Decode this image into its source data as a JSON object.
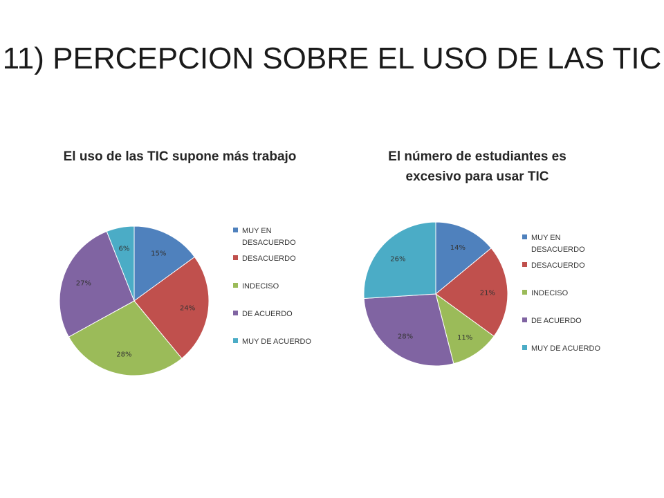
{
  "slide": {
    "title": "11) PERCEPCION SOBRE EL USO DE LAS TIC"
  },
  "colors": {
    "blue": "#4F81BD",
    "red": "#C0504D",
    "green": "#9BBB59",
    "purple": "#8064A2",
    "teal": "#4BACC6"
  },
  "chart_data": [
    {
      "type": "pie",
      "title": "El uso de las TIC supone más trabajo",
      "categories": [
        "MUY EN DESACUERDO",
        "DESACUERDO",
        "INDECISO",
        "DE ACUERDO",
        "MUY DE ACUERDO"
      ],
      "values": [
        15,
        24,
        28,
        27,
        6
      ],
      "value_labels": [
        "15%",
        "24%",
        "28%",
        "27%",
        "6%"
      ],
      "colors": [
        "#4F81BD",
        "#C0504D",
        "#9BBB59",
        "#8064A2",
        "#4BACC6"
      ],
      "legend": "right"
    },
    {
      "type": "pie",
      "title": "El número de estudiantes es excesivo para usar TIC",
      "categories": [
        "MUY EN DESACUERDO",
        "DESACUERDO",
        "INDECISO",
        "DE ACUERDO",
        "MUY DE ACUERDO"
      ],
      "values": [
        14,
        21,
        11,
        28,
        26
      ],
      "value_labels": [
        "14%",
        "21%",
        "11%",
        "28%",
        "26%"
      ],
      "colors": [
        "#4F81BD",
        "#C0504D",
        "#9BBB59",
        "#8064A2",
        "#4BACC6"
      ],
      "legend": "right"
    }
  ]
}
